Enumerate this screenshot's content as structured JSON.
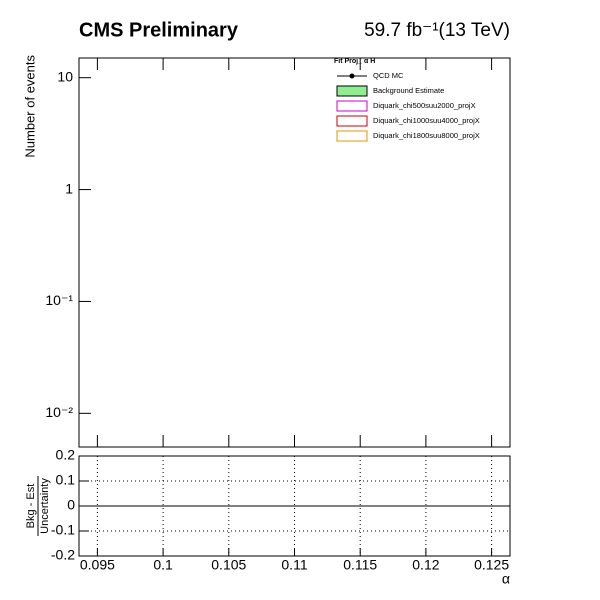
{
  "chart_data": [
    {
      "type": "line",
      "title": "CMS Preliminary",
      "subtitle": "59.7 fb⁻¹(13 TeV)",
      "ylabel": "Number of events",
      "legend_title": "Fit Proj_ α H",
      "legend": "upper-right",
      "log_y": true,
      "x": [],
      "series": [
        {
          "name": "QCD MC",
          "color": "#000000",
          "style": "line-marker",
          "values": []
        },
        {
          "name": "Background Estimate",
          "color": "#90ee90",
          "style": "filled-box",
          "values": []
        },
        {
          "name": "Diquark_chi500suu2000_projX",
          "color": "#cc00cc",
          "style": "box",
          "values": []
        },
        {
          "name": "Diquark_chi1000suu4000_projX",
          "color": "#cc0000",
          "style": "box",
          "values": []
        },
        {
          "name": "Diquark_chi1800suu8000_projX",
          "color": "#e69500",
          "style": "box",
          "values": []
        }
      ],
      "xlim": [
        0.0936,
        0.1264
      ],
      "xticks": [
        0.095,
        0.1,
        0.105,
        0.11,
        0.115,
        0.12,
        0.125
      ],
      "ylim": [
        0.005,
        15
      ],
      "yticks": [
        {
          "value": 0.01,
          "label": "10⁻²"
        },
        {
          "value": 0.1,
          "label": "10⁻¹"
        },
        1,
        10
      ]
    },
    {
      "type": "line",
      "xlabel": "α",
      "ylabel": {
        "numerator": "Bkg - Est",
        "denominator": "Uncertainty"
      },
      "x": [],
      "series": [],
      "grid": true,
      "hline": 0,
      "xlim": [
        0.0936,
        0.1264
      ],
      "xticks": [
        0.095,
        0.1,
        0.105,
        0.11,
        0.115,
        0.12,
        0.125
      ],
      "ylim": [
        -0.2,
        0.2
      ],
      "yticks": [
        -0.2,
        -0.1,
        0,
        0.1,
        0.2
      ]
    }
  ]
}
